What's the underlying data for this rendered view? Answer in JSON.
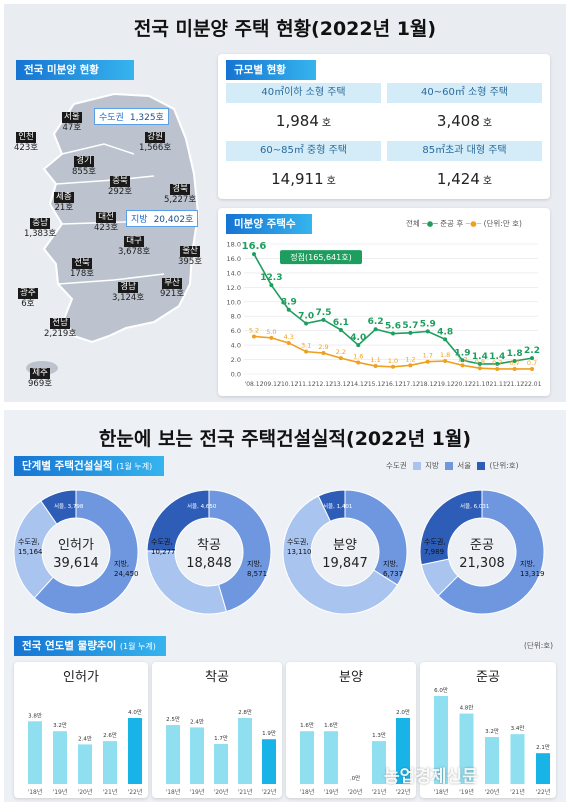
{
  "top": {
    "title": "전국 미분양 주택 현황(2022년 1월)",
    "map_label": "전국 미분양 현황",
    "size_label": "규모별 현황",
    "trend_label": "미분양 주택수",
    "regions": [
      {
        "name": "서울",
        "value": "47호"
      },
      {
        "name": "인천",
        "value": "423호"
      },
      {
        "name": "강원",
        "value": "1,566호"
      },
      {
        "name": "경기",
        "value": "855호"
      },
      {
        "name": "충북",
        "value": "292호"
      },
      {
        "name": "경북",
        "value": "5,227호"
      },
      {
        "name": "세종",
        "value": "21호"
      },
      {
        "name": "충남",
        "value": "1,383호"
      },
      {
        "name": "대전",
        "value": "423호"
      },
      {
        "name": "대구",
        "value": "3,678호"
      },
      {
        "name": "울산",
        "value": "395호"
      },
      {
        "name": "전북",
        "value": "178호"
      },
      {
        "name": "광주",
        "value": "6호"
      },
      {
        "name": "경남",
        "value": "3,124호"
      },
      {
        "name": "부산",
        "value": "921호"
      },
      {
        "name": "전남",
        "value": "2,219호"
      },
      {
        "name": "제주",
        "value": "969호"
      }
    ],
    "capital": {
      "label": "수도권",
      "value": "1,325호"
    },
    "province": {
      "label": "지방",
      "value": "20,402호"
    },
    "sizes": [
      {
        "label": "40㎡이하 소형 주택",
        "value": "1,984",
        "unit": "호"
      },
      {
        "label": "40~60㎡ 소형 주택",
        "value": "3,408",
        "unit": "호"
      },
      {
        "label": "60~85㎡ 중형 주택",
        "value": "14,911",
        "unit": "호"
      },
      {
        "label": "85㎡초과 대형 주택",
        "value": "1,424",
        "unit": "호"
      }
    ],
    "legend": {
      "total": "전체",
      "after": "준공 후",
      "unit": "(단위:만 호)"
    },
    "peak_label": "정점(165,641호)"
  },
  "bottom": {
    "title": "한눈에 보는 전국 주택건설실적(2022년 1월)",
    "stage_label": "단계별 주택건설실적",
    "stage_sub": "(1월 누계)",
    "legend": {
      "capital": "수도권",
      "province": "지방",
      "seoul": "서울",
      "unit": "(단위:호)"
    },
    "yearly_label": "전국 연도별 물량추이",
    "yearly_sub": "(1월 누계)",
    "yearly_unit": "(단위:호)",
    "watermark": "농업경제신문"
  },
  "chart_data": [
    {
      "type": "line",
      "title": "미분양 주택수",
      "ylim": [
        0,
        18
      ],
      "categories": [
        "'08.12",
        "'09.12",
        "'10.12",
        "'11.12",
        "'12.12",
        "'13.12",
        "'14.12",
        "'15.12",
        "'16.12",
        "'17.12",
        "'18.12",
        "'19.12",
        "'20.12",
        "'21.10",
        "'21.11",
        "'21.12",
        "'22.01"
      ],
      "yticks": [
        "0.0",
        "2.0",
        "4.0",
        "6.0",
        "8.0",
        "10.0",
        "12.0",
        "14.0",
        "16.0",
        "18.0"
      ],
      "series": [
        {
          "name": "전체",
          "color": "#1e9e5e",
          "values": [
            16.6,
            12.3,
            8.9,
            7.0,
            7.5,
            6.1,
            4.0,
            6.2,
            5.6,
            5.7,
            5.9,
            4.8,
            1.9,
            1.4,
            1.4,
            1.8,
            2.2
          ]
        },
        {
          "name": "준공 후",
          "color": "#f0a020",
          "values": [
            5.2,
            5.0,
            4.3,
            3.1,
            2.9,
            2.2,
            1.6,
            1.1,
            1.0,
            1.2,
            1.7,
            1.8,
            1.2,
            0.8,
            0.7,
            0.7,
            0.7
          ]
        }
      ]
    },
    {
      "type": "pie",
      "title": "인허가",
      "total": "39,614",
      "slices": [
        {
          "name": "수도권",
          "label": "수도권, 15,164",
          "value": 15164
        },
        {
          "name": "지방",
          "label": "지방, 24,450",
          "value": 24450
        }
      ],
      "seoul": {
        "label": "서울, 3,798",
        "value": 3798
      }
    },
    {
      "type": "pie",
      "title": "착공",
      "total": "18,848",
      "slices": [
        {
          "name": "수도권",
          "label": "수도권, 10,277",
          "value": 10277
        },
        {
          "name": "지방",
          "label": "지방, 8,571",
          "value": 8571
        }
      ],
      "seoul": {
        "label": "서울, 4,650",
        "value": 4650
      }
    },
    {
      "type": "pie",
      "title": "분양",
      "total": "19,847",
      "slices": [
        {
          "name": "수도권",
          "label": "수도권, 13,110",
          "value": 13110
        },
        {
          "name": "지방",
          "label": "지방, 6,737",
          "value": 6737
        }
      ],
      "seoul": {
        "label": "서울, 1,401",
        "value": 1401
      }
    },
    {
      "type": "pie",
      "title": "준공",
      "total": "21,308",
      "slices": [
        {
          "name": "수도권",
          "label": "수도권, 7,989",
          "value": 7989
        },
        {
          "name": "지방",
          "label": "지방, 13,319",
          "value": 13319
        }
      ],
      "seoul": {
        "label": "서울, 6,031",
        "value": 6031
      }
    },
    {
      "type": "bar",
      "title": "인허가",
      "categories": [
        "'18년",
        "'19년",
        "'20년",
        "'21년",
        "'22년"
      ],
      "values": [
        3.8,
        3.2,
        2.4,
        2.6,
        4.0
      ],
      "labels": [
        "3.8만",
        "3.2만",
        "2.4만",
        "2.6만",
        "4.0만"
      ]
    },
    {
      "type": "bar",
      "title": "착공",
      "categories": [
        "'18년",
        "'19년",
        "'20년",
        "'21년",
        "'22년"
      ],
      "values": [
        2.5,
        2.4,
        1.7,
        2.8,
        1.9
      ],
      "labels": [
        "2.5만",
        "2.4만",
        "1.7만",
        "2.8만",
        "1.9만"
      ]
    },
    {
      "type": "bar",
      "title": "분양",
      "categories": [
        "'18년",
        "'19년",
        "'20년",
        "'21년",
        "'22년"
      ],
      "values": [
        1.6,
        1.6,
        0.0,
        1.3,
        2.0
      ],
      "labels": [
        "1.6만",
        "1.6만",
        ".0만",
        "1.3만",
        "2.0만"
      ]
    },
    {
      "type": "bar",
      "title": "준공",
      "categories": [
        "'18년",
        "'19년",
        "'20년",
        "'21년",
        "'22년"
      ],
      "values": [
        6.0,
        4.8,
        3.2,
        3.4,
        2.1
      ],
      "labels": [
        "6.0만",
        "4.8만",
        "3.2만",
        "3.4만",
        "2.1만"
      ]
    }
  ],
  "colors": {
    "capital": "#a9c4ee",
    "province": "#6f97e0",
    "seoul": "#2e5db8",
    "bar": "#8fdff0",
    "bar_last": "#18b4e8",
    "green": "#1e9e5e",
    "orange": "#f0a020"
  }
}
